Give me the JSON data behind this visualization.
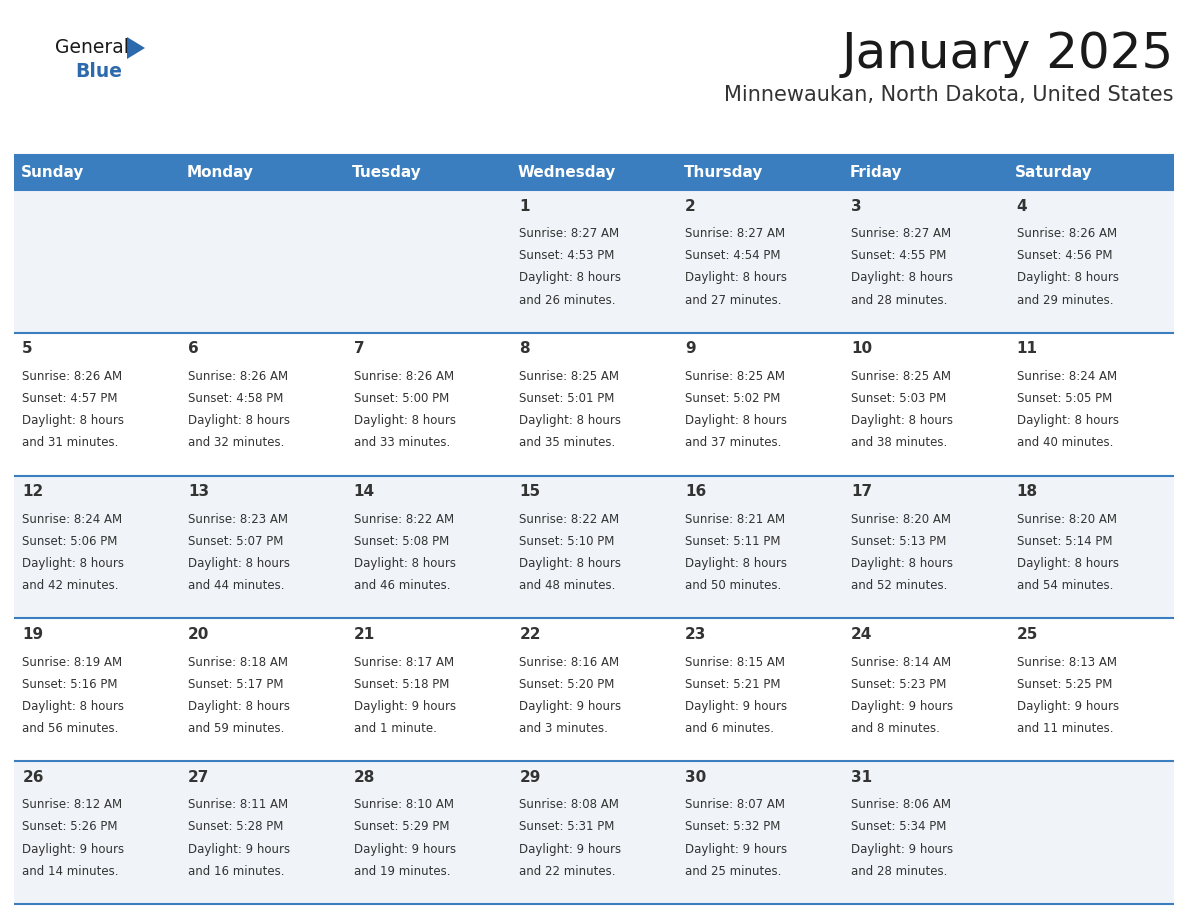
{
  "title": "January 2025",
  "subtitle": "Minnewaukan, North Dakota, United States",
  "header_color": "#3a7ebf",
  "header_text_color": "#ffffff",
  "row_colors": [
    "#f0f4f8",
    "#ffffff",
    "#f0f4f8",
    "#ffffff",
    "#f0f4f8"
  ],
  "border_color": "#3a7ebf",
  "text_color": "#333333",
  "day_headers": [
    "Sunday",
    "Monday",
    "Tuesday",
    "Wednesday",
    "Thursday",
    "Friday",
    "Saturday"
  ],
  "title_color": "#1a1a1a",
  "subtitle_color": "#333333",
  "logo_triangle_color": "#2d6aad",
  "logo_blue_color": "#2d6aad",
  "days": [
    {
      "date": 1,
      "col": 3,
      "row": 0,
      "sunrise": "8:27 AM",
      "sunset": "4:53 PM",
      "daylight": "8 hours",
      "daylight2": "and 26 minutes."
    },
    {
      "date": 2,
      "col": 4,
      "row": 0,
      "sunrise": "8:27 AM",
      "sunset": "4:54 PM",
      "daylight": "8 hours",
      "daylight2": "and 27 minutes."
    },
    {
      "date": 3,
      "col": 5,
      "row": 0,
      "sunrise": "8:27 AM",
      "sunset": "4:55 PM",
      "daylight": "8 hours",
      "daylight2": "and 28 minutes."
    },
    {
      "date": 4,
      "col": 6,
      "row": 0,
      "sunrise": "8:26 AM",
      "sunset": "4:56 PM",
      "daylight": "8 hours",
      "daylight2": "and 29 minutes."
    },
    {
      "date": 5,
      "col": 0,
      "row": 1,
      "sunrise": "8:26 AM",
      "sunset": "4:57 PM",
      "daylight": "8 hours",
      "daylight2": "and 31 minutes."
    },
    {
      "date": 6,
      "col": 1,
      "row": 1,
      "sunrise": "8:26 AM",
      "sunset": "4:58 PM",
      "daylight": "8 hours",
      "daylight2": "and 32 minutes."
    },
    {
      "date": 7,
      "col": 2,
      "row": 1,
      "sunrise": "8:26 AM",
      "sunset": "5:00 PM",
      "daylight": "8 hours",
      "daylight2": "and 33 minutes."
    },
    {
      "date": 8,
      "col": 3,
      "row": 1,
      "sunrise": "8:25 AM",
      "sunset": "5:01 PM",
      "daylight": "8 hours",
      "daylight2": "and 35 minutes."
    },
    {
      "date": 9,
      "col": 4,
      "row": 1,
      "sunrise": "8:25 AM",
      "sunset": "5:02 PM",
      "daylight": "8 hours",
      "daylight2": "and 37 minutes."
    },
    {
      "date": 10,
      "col": 5,
      "row": 1,
      "sunrise": "8:25 AM",
      "sunset": "5:03 PM",
      "daylight": "8 hours",
      "daylight2": "and 38 minutes."
    },
    {
      "date": 11,
      "col": 6,
      "row": 1,
      "sunrise": "8:24 AM",
      "sunset": "5:05 PM",
      "daylight": "8 hours",
      "daylight2": "and 40 minutes."
    },
    {
      "date": 12,
      "col": 0,
      "row": 2,
      "sunrise": "8:24 AM",
      "sunset": "5:06 PM",
      "daylight": "8 hours",
      "daylight2": "and 42 minutes."
    },
    {
      "date": 13,
      "col": 1,
      "row": 2,
      "sunrise": "8:23 AM",
      "sunset": "5:07 PM",
      "daylight": "8 hours",
      "daylight2": "and 44 minutes."
    },
    {
      "date": 14,
      "col": 2,
      "row": 2,
      "sunrise": "8:22 AM",
      "sunset": "5:08 PM",
      "daylight": "8 hours",
      "daylight2": "and 46 minutes."
    },
    {
      "date": 15,
      "col": 3,
      "row": 2,
      "sunrise": "8:22 AM",
      "sunset": "5:10 PM",
      "daylight": "8 hours",
      "daylight2": "and 48 minutes."
    },
    {
      "date": 16,
      "col": 4,
      "row": 2,
      "sunrise": "8:21 AM",
      "sunset": "5:11 PM",
      "daylight": "8 hours",
      "daylight2": "and 50 minutes."
    },
    {
      "date": 17,
      "col": 5,
      "row": 2,
      "sunrise": "8:20 AM",
      "sunset": "5:13 PM",
      "daylight": "8 hours",
      "daylight2": "and 52 minutes."
    },
    {
      "date": 18,
      "col": 6,
      "row": 2,
      "sunrise": "8:20 AM",
      "sunset": "5:14 PM",
      "daylight": "8 hours",
      "daylight2": "and 54 minutes."
    },
    {
      "date": 19,
      "col": 0,
      "row": 3,
      "sunrise": "8:19 AM",
      "sunset": "5:16 PM",
      "daylight": "8 hours",
      "daylight2": "and 56 minutes."
    },
    {
      "date": 20,
      "col": 1,
      "row": 3,
      "sunrise": "8:18 AM",
      "sunset": "5:17 PM",
      "daylight": "8 hours",
      "daylight2": "and 59 minutes."
    },
    {
      "date": 21,
      "col": 2,
      "row": 3,
      "sunrise": "8:17 AM",
      "sunset": "5:18 PM",
      "daylight": "9 hours",
      "daylight2": "and 1 minute."
    },
    {
      "date": 22,
      "col": 3,
      "row": 3,
      "sunrise": "8:16 AM",
      "sunset": "5:20 PM",
      "daylight": "9 hours",
      "daylight2": "and 3 minutes."
    },
    {
      "date": 23,
      "col": 4,
      "row": 3,
      "sunrise": "8:15 AM",
      "sunset": "5:21 PM",
      "daylight": "9 hours",
      "daylight2": "and 6 minutes."
    },
    {
      "date": 24,
      "col": 5,
      "row": 3,
      "sunrise": "8:14 AM",
      "sunset": "5:23 PM",
      "daylight": "9 hours",
      "daylight2": "and 8 minutes."
    },
    {
      "date": 25,
      "col": 6,
      "row": 3,
      "sunrise": "8:13 AM",
      "sunset": "5:25 PM",
      "daylight": "9 hours",
      "daylight2": "and 11 minutes."
    },
    {
      "date": 26,
      "col": 0,
      "row": 4,
      "sunrise": "8:12 AM",
      "sunset": "5:26 PM",
      "daylight": "9 hours",
      "daylight2": "and 14 minutes."
    },
    {
      "date": 27,
      "col": 1,
      "row": 4,
      "sunrise": "8:11 AM",
      "sunset": "5:28 PM",
      "daylight": "9 hours",
      "daylight2": "and 16 minutes."
    },
    {
      "date": 28,
      "col": 2,
      "row": 4,
      "sunrise": "8:10 AM",
      "sunset": "5:29 PM",
      "daylight": "9 hours",
      "daylight2": "and 19 minutes."
    },
    {
      "date": 29,
      "col": 3,
      "row": 4,
      "sunrise": "8:08 AM",
      "sunset": "5:31 PM",
      "daylight": "9 hours",
      "daylight2": "and 22 minutes."
    },
    {
      "date": 30,
      "col": 4,
      "row": 4,
      "sunrise": "8:07 AM",
      "sunset": "5:32 PM",
      "daylight": "9 hours",
      "daylight2": "and 25 minutes."
    },
    {
      "date": 31,
      "col": 5,
      "row": 4,
      "sunrise": "8:06 AM",
      "sunset": "5:34 PM",
      "daylight": "9 hours",
      "daylight2": "and 28 minutes."
    }
  ],
  "num_rows": 5,
  "num_cols": 7,
  "fig_width": 11.88,
  "fig_height": 9.18,
  "dpi": 100,
  "title_fontsize": 36,
  "subtitle_fontsize": 15,
  "header_fontsize": 11,
  "date_fontsize": 11,
  "info_fontsize": 8.5
}
